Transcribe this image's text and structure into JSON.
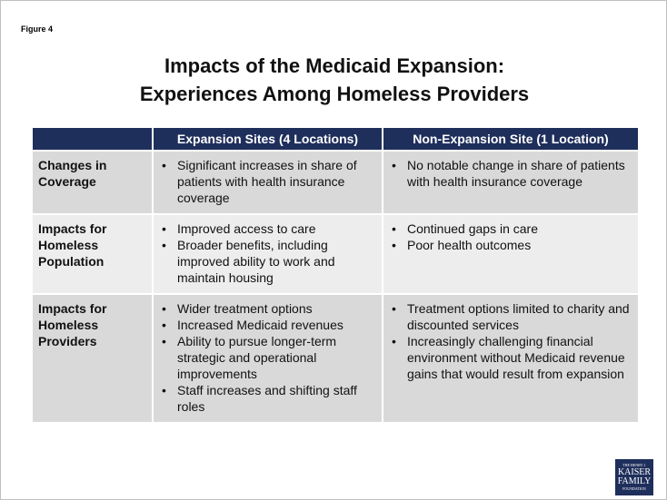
{
  "figure_label": "Figure 4",
  "title": [
    "Impacts of the Medicaid Expansion:",
    "Experiences Among Homeless Providers"
  ],
  "table": {
    "header": [
      "Expansion Sites (4 Locations)",
      "Non-Expansion Site (1 Location)"
    ],
    "rows": [
      {
        "label": "Changes in Coverage",
        "cells": [
          [
            "Significant increases in share of patients with health insurance coverage"
          ],
          [
            "No notable change in share of patients with health insurance coverage"
          ]
        ]
      },
      {
        "label": "Impacts for Homeless Population",
        "cells": [
          [
            "Improved access to care",
            "Broader benefits, including improved ability to work and maintain housing"
          ],
          [
            "Continued gaps in care",
            "Poor health outcomes"
          ]
        ]
      },
      {
        "label": "Impacts for Homeless Providers",
        "cells": [
          [
            "Wider treatment options",
            "Increased Medicaid revenues",
            "Ability to pursue longer-term strategic and operational improvements",
            "Staff increases and shifting staff roles"
          ],
          [
            "Treatment options limited to charity and discounted services",
            "Increasingly challenging financial environment without Medicaid revenue gains that would result from expansion"
          ]
        ]
      }
    ]
  },
  "logo": [
    "THE HENRY J.",
    "KAISER",
    "FAMILY",
    "FOUNDATION"
  ]
}
